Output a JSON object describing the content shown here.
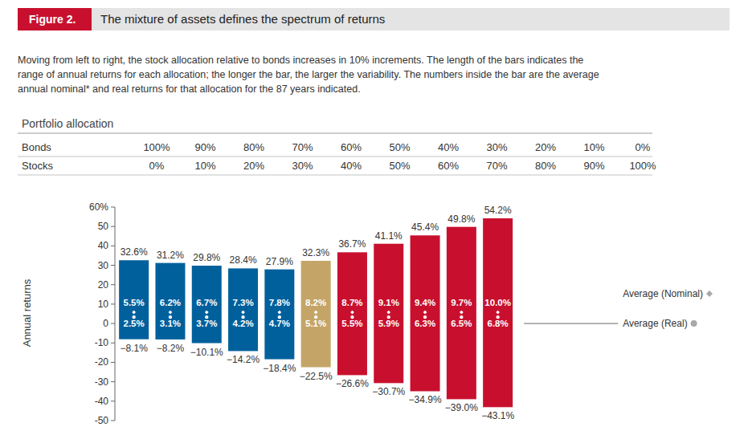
{
  "chart_data": {
    "type": "bar",
    "figure_label": "Figure 2.",
    "title": "The mixture of assets defines the spectrum of returns",
    "subtitle": [
      "Moving from left to right, the stock allocation relative to bonds increases in 10% increments. The length of the bars indicates the",
      "range of annual returns for each allocation; the longer the bar, the larger the variability. The numbers inside the bar are the average",
      "annual nominal* and real returns for that allocation for the 87 years indicated."
    ],
    "table": {
      "title": "Portfolio allocation",
      "rows": [
        {
          "label": "Bonds",
          "cells": [
            "100%",
            "90%",
            "80%",
            "70%",
            "60%",
            "50%",
            "40%",
            "30%",
            "20%",
            "10%",
            "0%"
          ]
        },
        {
          "label": "Stocks",
          "cells": [
            "0%",
            "10%",
            "20%",
            "30%",
            "40%",
            "50%",
            "60%",
            "70%",
            "80%",
            "90%",
            "100%"
          ]
        }
      ]
    },
    "categories": [
      null,
      null,
      null,
      null,
      null,
      null,
      null,
      null,
      null,
      null,
      null
    ],
    "high": {
      "values": [
        32.6,
        31.2,
        29.8,
        28.4,
        27.9,
        32.3,
        36.7,
        41.1,
        45.4,
        49.8,
        54.2
      ],
      "value_labels": [
        "32.6%",
        "31.2%",
        "29.8%",
        "28.4%",
        "27.9%",
        "32.3%",
        "36.7%",
        "41.1%",
        "45.4%",
        "49.8%",
        "54.2%"
      ]
    },
    "low": {
      "values": [
        -8.1,
        -8.2,
        -10.1,
        -14.2,
        -18.4,
        -22.5,
        -26.6,
        -30.7,
        -34.9,
        -39.0,
        -43.1
      ],
      "value_labels": [
        "−8.1%",
        "−8.2%",
        "−10.1%",
        "−14.2%",
        "−18.4%",
        "−22.5%",
        "−26.6%",
        "−30.7%",
        "−34.9%",
        "−39.0%",
        "−43.1%"
      ]
    },
    "series": [
      {
        "name": "Average (Nominal)",
        "marker": "diamond",
        "values": [
          5.5,
          6.2,
          6.7,
          7.3,
          7.8,
          8.2,
          8.7,
          9.1,
          9.4,
          9.7,
          10.0
        ],
        "value_labels": [
          "5.5%",
          "6.2%",
          "6.7%",
          "7.3%",
          "7.8%",
          "8.2%",
          "8.7%",
          "9.1%",
          "9.4%",
          "9.7%",
          "10.0%"
        ]
      },
      {
        "name": "Average (Real)",
        "marker": "circle",
        "values": [
          2.5,
          3.1,
          3.7,
          4.2,
          4.7,
          5.1,
          5.5,
          5.9,
          6.3,
          6.5,
          6.8
        ],
        "value_labels": [
          "2.5%",
          "3.1%",
          "3.7%",
          "4.2%",
          "4.7%",
          "5.1%",
          "5.5%",
          "5.9%",
          "6.3%",
          "6.5%",
          "6.8%"
        ]
      }
    ],
    "colors": [
      "#00609c",
      "#00609c",
      "#00609c",
      "#00609c",
      "#00609c",
      "#c4a567",
      "#c8102e",
      "#c8102e",
      "#c8102e",
      "#c8102e",
      "#c8102e"
    ],
    "y_label": "Annual returns",
    "ylim": [
      -50,
      60
    ],
    "yticks": [
      {
        "value": 60,
        "label": "60%"
      },
      50,
      40,
      30,
      20,
      10,
      0,
      -10,
      -20,
      -30,
      -40,
      -50
    ],
    "data_labels": true,
    "legend": "right",
    "grid": false
  }
}
